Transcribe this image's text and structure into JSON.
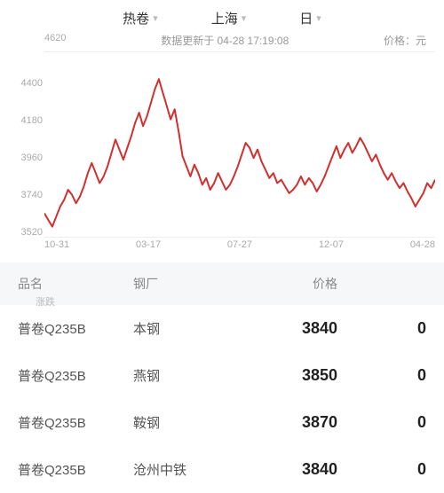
{
  "filters": {
    "product": "热卷",
    "city": "上海",
    "period": "日"
  },
  "meta": {
    "update_text": "数据更新于 04-28 17:19:08",
    "price_label": "价格：",
    "unit": "元"
  },
  "chart": {
    "type": "line",
    "line_color": "#d22f2f",
    "line_width": 2,
    "grid_color": "#eeeeee",
    "background_color": "#ffffff",
    "axis_label_color": "#aaaaaa",
    "axis_fontsize": 11,
    "ylim": [
      3520,
      4620
    ],
    "yticks": [
      4620,
      4400,
      4180,
      3960,
      3740,
      3520
    ],
    "xticks": [
      "10-31",
      "03-17",
      "07-27",
      "12-07",
      "04-28"
    ],
    "values": [
      3660,
      3620,
      3580,
      3640,
      3700,
      3740,
      3800,
      3770,
      3720,
      3760,
      3820,
      3900,
      3960,
      3900,
      3840,
      3880,
      3940,
      4020,
      4100,
      4040,
      3980,
      4050,
      4120,
      4200,
      4260,
      4180,
      4240,
      4320,
      4400,
      4460,
      4380,
      4300,
      4220,
      4280,
      4150,
      4000,
      3940,
      3880,
      3950,
      3900,
      3830,
      3870,
      3800,
      3840,
      3900,
      3850,
      3800,
      3830,
      3880,
      3940,
      4010,
      4080,
      4050,
      3990,
      4040,
      3970,
      3920,
      3870,
      3900,
      3840,
      3860,
      3820,
      3780,
      3800,
      3830,
      3880,
      3830,
      3870,
      3840,
      3790,
      3830,
      3880,
      3940,
      4000,
      4060,
      3990,
      4040,
      4080,
      4020,
      4060,
      4110,
      4070,
      4020,
      3970,
      4010,
      3950,
      3900,
      3860,
      3900,
      3850,
      3810,
      3840,
      3790,
      3750,
      3700,
      3740,
      3780,
      3840,
      3810,
      3860
    ]
  },
  "table": {
    "headers": {
      "name": "品名",
      "mill": "钢厂",
      "price": "价格",
      "sub": "涨跌"
    },
    "rows": [
      {
        "name": "普卷Q235B",
        "mill": "本钢",
        "price": "3840",
        "chg": "0"
      },
      {
        "name": "普卷Q235B",
        "mill": "燕钢",
        "price": "3850",
        "chg": "0"
      },
      {
        "name": "普卷Q235B",
        "mill": "鞍钢",
        "price": "3870",
        "chg": "0"
      },
      {
        "name": "普卷Q235B",
        "mill": "沧州中铁",
        "price": "3840",
        "chg": "0"
      }
    ]
  }
}
